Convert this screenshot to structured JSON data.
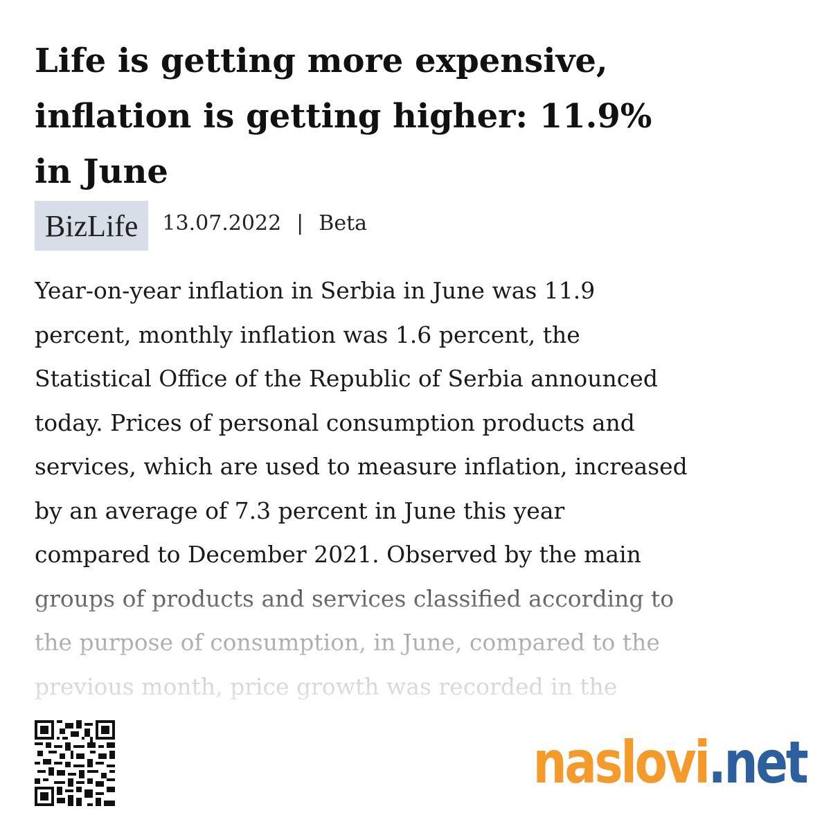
{
  "header": {
    "title_lines": [
      "Life is getting more expensive,",
      "inflation is getting higher: 11.9%",
      "in June"
    ]
  },
  "meta": {
    "category": "BizLife",
    "date": "13.07.2022",
    "separator": "|",
    "source": "Beta"
  },
  "body": {
    "lines": [
      "Year-on-year inflation in Serbia in June was 11.9",
      "percent, monthly inflation was 1.6 percent, the",
      "Statistical Office of the Republic of Serbia announced",
      "today. Prices of personal consumption products and",
      "services, which are used to measure inflation, increased",
      "by an average of 7.3 percent in June this year",
      "compared to December 2021. Observed by the main",
      "groups of products and services classified according to",
      "the purpose of consumption, in June, compared to the",
      "previous month, price growth was recorded in the"
    ]
  },
  "footer": {
    "logo_main": "naslovi",
    "logo_suffix": ".net"
  }
}
